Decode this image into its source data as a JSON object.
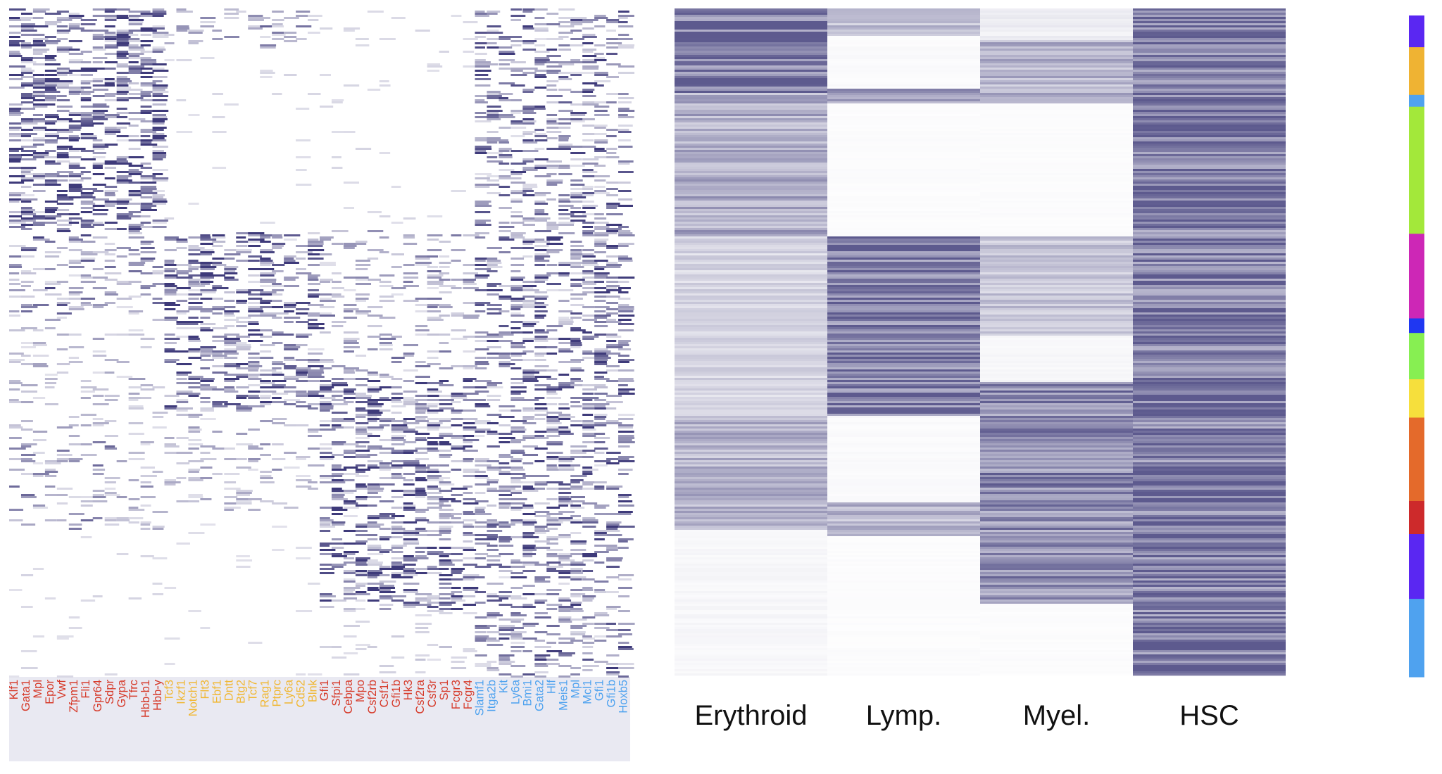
{
  "chart_data": [
    {
      "type": "heatmap",
      "title": "",
      "color_low": "#ffffff",
      "color_high": "#3e3a7a",
      "background": "#e9e9f2",
      "group_colors": {
        "erythroid": "#d63a2a",
        "lymphoid": "#f0b733",
        "myeloid": "#d63a2a",
        "hsc": "#4ea2ef"
      },
      "genes": [
        {
          "name": "Klf1",
          "group": "erythroid"
        },
        {
          "name": "Gata1",
          "group": "erythroid"
        },
        {
          "name": "Mpl",
          "group": "erythroid"
        },
        {
          "name": "Epor",
          "group": "erythroid"
        },
        {
          "name": "Vwf",
          "group": "erythroid"
        },
        {
          "name": "Zfpm1",
          "group": "erythroid"
        },
        {
          "name": "Fli1",
          "group": "erythroid"
        },
        {
          "name": "Gpr64",
          "group": "erythroid"
        },
        {
          "name": "Sdpr",
          "group": "erythroid"
        },
        {
          "name": "Gypa",
          "group": "erythroid"
        },
        {
          "name": "Tfrc",
          "group": "erythroid"
        },
        {
          "name": "Hbb-b1",
          "group": "erythroid"
        },
        {
          "name": "Hbb-y",
          "group": "erythroid"
        },
        {
          "name": "Tcf3",
          "group": "lymphoid"
        },
        {
          "name": "Ikzf1",
          "group": "lymphoid"
        },
        {
          "name": "Notch1",
          "group": "lymphoid"
        },
        {
          "name": "Flt3",
          "group": "lymphoid"
        },
        {
          "name": "Ebf1",
          "group": "lymphoid"
        },
        {
          "name": "Dntt",
          "group": "lymphoid"
        },
        {
          "name": "Btg2",
          "group": "lymphoid"
        },
        {
          "name": "Tcf7",
          "group": "lymphoid"
        },
        {
          "name": "Rag1",
          "group": "lymphoid"
        },
        {
          "name": "Ptprc",
          "group": "lymphoid"
        },
        {
          "name": "Ly6a",
          "group": "lymphoid"
        },
        {
          "name": "Cd52",
          "group": "lymphoid"
        },
        {
          "name": "Blnk",
          "group": "lymphoid"
        },
        {
          "name": "Gfi1",
          "group": "myeloid"
        },
        {
          "name": "Sfpi1",
          "group": "myeloid"
        },
        {
          "name": "Cebpa",
          "group": "myeloid"
        },
        {
          "name": "Mpo",
          "group": "myeloid"
        },
        {
          "name": "Csf2rb",
          "group": "myeloid"
        },
        {
          "name": "Csf1r",
          "group": "myeloid"
        },
        {
          "name": "Gfi1b",
          "group": "myeloid"
        },
        {
          "name": "Hk3",
          "group": "myeloid"
        },
        {
          "name": "Csf2ra",
          "group": "myeloid"
        },
        {
          "name": "Csf3r",
          "group": "myeloid"
        },
        {
          "name": "Sp1",
          "group": "myeloid"
        },
        {
          "name": "Fcgr3",
          "group": "myeloid"
        },
        {
          "name": "Fcgr4",
          "group": "myeloid"
        },
        {
          "name": "Slamf1",
          "group": "hsc"
        },
        {
          "name": "Itga2b",
          "group": "hsc"
        },
        {
          "name": "Kit",
          "group": "hsc"
        },
        {
          "name": "Ly6a",
          "group": "hsc"
        },
        {
          "name": "Bmi1",
          "group": "hsc"
        },
        {
          "name": "Gata2",
          "group": "hsc"
        },
        {
          "name": "Hlf",
          "group": "hsc"
        },
        {
          "name": "Meis1",
          "group": "hsc"
        },
        {
          "name": "Mpl",
          "group": "hsc"
        },
        {
          "name": "Mcl1",
          "group": "hsc"
        },
        {
          "name": "Gfi1",
          "group": "hsc"
        },
        {
          "name": "Gfi1b",
          "group": "hsc"
        },
        {
          "name": "Hoxb5",
          "group": "hsc"
        }
      ]
    },
    {
      "type": "heatmap",
      "title": "",
      "color_low": "#ffffff",
      "color_high": "#5d5a8e",
      "background": "#e9e9f2",
      "categories": [
        "Erythroid",
        "Lymp.",
        "Myel.",
        "HSC"
      ],
      "column_bands": [
        {
          "name": "Erythroid",
          "bands": [
            [
              0.0,
              0.125,
              0.85
            ],
            [
              0.125,
              0.34,
              0.5
            ],
            [
              0.34,
              0.61,
              0.25
            ],
            [
              0.61,
              0.78,
              0.45
            ],
            [
              0.78,
              1.0,
              0.05
            ]
          ]
        },
        {
          "name": "Lymp.",
          "bands": [
            [
              0.0,
              0.04,
              0.4
            ],
            [
              0.04,
              0.12,
              0.03
            ],
            [
              0.12,
              0.14,
              0.55
            ],
            [
              0.14,
              0.34,
              0.02
            ],
            [
              0.34,
              0.61,
              0.8
            ],
            [
              0.61,
              0.74,
              0.03
            ],
            [
              0.74,
              0.79,
              0.45
            ],
            [
              0.79,
              1.0,
              0.02
            ]
          ]
        },
        {
          "name": "Myel.",
          "bands": [
            [
              0.0,
              0.045,
              0.1
            ],
            [
              0.045,
              0.14,
              0.45
            ],
            [
              0.14,
              0.34,
              0.02
            ],
            [
              0.34,
              0.49,
              0.35
            ],
            [
              0.49,
              0.56,
              0.05
            ],
            [
              0.56,
              0.89,
              0.7
            ],
            [
              0.89,
              1.0,
              0.02
            ]
          ]
        },
        {
          "name": "HSC",
          "bands": [
            [
              0.0,
              1.0,
              0.8
            ]
          ]
        }
      ]
    },
    {
      "type": "bar",
      "title": "",
      "orientation": "vertical-strip",
      "note_values_are_fractions_of_cells": true,
      "segments": [
        {
          "from": 0.0,
          "to": 0.048,
          "color": "#5a27f2"
        },
        {
          "from": 0.048,
          "to": 0.12,
          "color": "#efb333"
        },
        {
          "from": 0.12,
          "to": 0.138,
          "color": "#4fa2ef"
        },
        {
          "from": 0.138,
          "to": 0.33,
          "color": "#a3e83a"
        },
        {
          "from": 0.33,
          "to": 0.458,
          "color": "#cd27b6"
        },
        {
          "from": 0.458,
          "to": 0.48,
          "color": "#1f37f2"
        },
        {
          "from": 0.48,
          "to": 0.55,
          "color": "#87ef52"
        },
        {
          "from": 0.55,
          "to": 0.608,
          "color": "#f6df3c"
        },
        {
          "from": 0.608,
          "to": 0.734,
          "color": "#e46a2b"
        },
        {
          "from": 0.734,
          "to": 0.784,
          "color": "#cd2a2b"
        },
        {
          "from": 0.784,
          "to": 0.882,
          "color": "#5a27f2"
        },
        {
          "from": 0.882,
          "to": 1.0,
          "color": "#4fa2ef"
        }
      ]
    }
  ]
}
